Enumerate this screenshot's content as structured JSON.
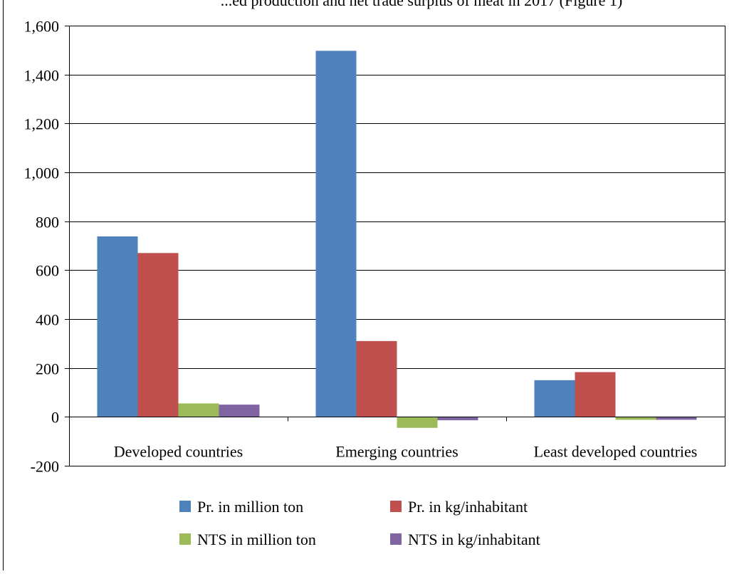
{
  "chart_data": {
    "type": "bar",
    "title": "...ed production and net trade surplus of meat in 2017 (Figure 1)",
    "xlabel": "",
    "ylabel": "",
    "categories": [
      "Developed countries",
      "Emerging countries",
      "Least developed countries"
    ],
    "series": [
      {
        "name": "Pr. in million ton",
        "color": "#4F81BD",
        "values": [
          738,
          1497,
          150
        ]
      },
      {
        "name": "Pr. in kg/inhabitant",
        "color": "#C0504D",
        "values": [
          670,
          310,
          183
        ]
      },
      {
        "name": "NTS in million ton",
        "color": "#9BBB59",
        "values": [
          55,
          -45,
          -12
        ]
      },
      {
        "name": "NTS in kg/inhabitant",
        "color": "#8064A2",
        "values": [
          50,
          -14,
          -12
        ]
      }
    ],
    "ylim": [
      -200,
      1600
    ],
    "yticks": [
      -200,
      0,
      200,
      400,
      600,
      800,
      1000,
      1200,
      1400,
      1600
    ],
    "ytick_labels": [
      "-200",
      "0",
      "200",
      "400",
      "600",
      "800",
      "1,000",
      "1,200",
      "1,400",
      "1,600"
    ],
    "grid": true,
    "legend_position": "bottom"
  }
}
